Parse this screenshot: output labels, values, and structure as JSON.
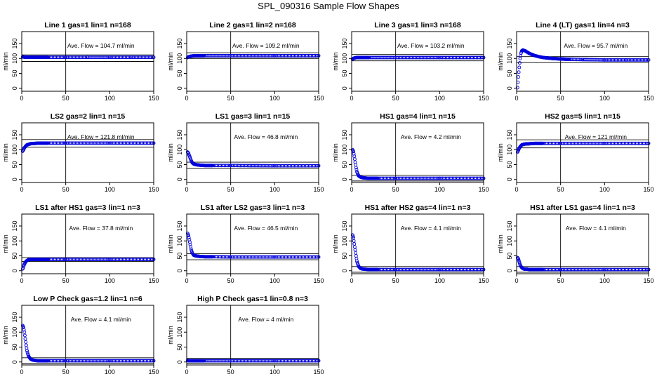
{
  "figure": {
    "title": "SPL_090316  Sample Flow Shapes"
  },
  "chart_data": [
    {
      "type": "scatter",
      "title": "Line 1 gas=1 lin=1 n=168",
      "ylabel": "ml/min",
      "annotation": "Ave. Flow =  104.7  ml/min",
      "xlim": [
        0,
        150
      ],
      "ylim": [
        -10,
        190
      ],
      "xticks": [
        0,
        50,
        100,
        150
      ],
      "yticks": [
        0,
        50,
        100,
        150
      ],
      "vline": 50,
      "hlines": [
        90,
        112
      ],
      "series": [
        {
          "x": [
            1,
            2,
            3,
            5,
            8,
            12,
            20,
            30,
            50,
            75,
            100,
            125,
            150
          ],
          "y": [
            105,
            105,
            104,
            104,
            104,
            104,
            104,
            104,
            104,
            104,
            104,
            104,
            104
          ]
        }
      ]
    },
    {
      "type": "scatter",
      "title": "Line 2 gas=1 lin=2 n=168",
      "ylabel": "ml/min",
      "annotation": "Ave. Flow =  109.2  ml/min",
      "xlim": [
        0,
        150
      ],
      "ylim": [
        -10,
        190
      ],
      "xticks": [
        0,
        50,
        100,
        150
      ],
      "yticks": [
        0,
        50,
        100,
        150
      ],
      "vline": 50,
      "hlines": [
        100,
        119
      ],
      "series": [
        {
          "x": [
            1,
            2,
            3,
            4,
            6,
            10,
            20,
            50,
            100,
            150
          ],
          "y": [
            103,
            105,
            106,
            107,
            108,
            109,
            109,
            109,
            109,
            109
          ]
        }
      ]
    },
    {
      "type": "scatter",
      "title": "Line 3 gas=1 lin=3 n=168",
      "ylabel": "ml/min",
      "annotation": "Ave. Flow =  103.2  ml/min",
      "xlim": [
        0,
        150
      ],
      "ylim": [
        -10,
        190
      ],
      "xticks": [
        0,
        50,
        100,
        150
      ],
      "yticks": [
        0,
        50,
        100,
        150
      ],
      "vline": 50,
      "hlines": [
        92,
        113
      ],
      "series": [
        {
          "x": [
            1,
            2,
            3,
            4,
            6,
            10,
            20,
            50,
            100,
            150
          ],
          "y": [
            98,
            100,
            101,
            102,
            103,
            103,
            103,
            103,
            103,
            103
          ]
        }
      ]
    },
    {
      "type": "scatter",
      "title": "Line 4 (LT) gas=1 lin=4 n=3",
      "ylabel": "ml/min",
      "annotation": "Ave. Flow =  95.7  ml/min",
      "xlim": [
        0,
        150
      ],
      "ylim": [
        -10,
        190
      ],
      "xticks": [
        0,
        50,
        100,
        150
      ],
      "yticks": [
        0,
        50,
        100,
        150
      ],
      "vline": 50,
      "hlines": [
        86,
        106
      ],
      "series": [
        {
          "x": [
            1,
            2,
            3,
            4,
            5,
            6,
            7,
            8,
            10,
            12,
            15,
            20,
            25,
            30,
            40,
            50,
            60,
            75,
            100,
            125,
            150
          ],
          "y": [
            2,
            38,
            70,
            100,
            118,
            126,
            128,
            127,
            125,
            121,
            116,
            110,
            106,
            103,
            100,
            98,
            97,
            96,
            95,
            95,
            95
          ]
        }
      ]
    },
    {
      "type": "scatter",
      "title": "LS2 gas=2 lin=1 n=15",
      "ylabel": "ml/min",
      "annotation": "Ave. Flow =  121.8  ml/min",
      "xlim": [
        0,
        150
      ],
      "ylim": [
        -10,
        190
      ],
      "xticks": [
        0,
        50,
        100,
        150
      ],
      "yticks": [
        0,
        50,
        100,
        150
      ],
      "vline": 50,
      "hlines": [
        108,
        134
      ],
      "series": [
        {
          "x": [
            1,
            2,
            3,
            4,
            5,
            6,
            8,
            10,
            15,
            20,
            30,
            50,
            100,
            150
          ],
          "y": [
            95,
            100,
            106,
            110,
            114,
            116,
            118,
            120,
            121,
            122,
            122,
            122,
            122,
            122
          ]
        }
      ]
    },
    {
      "type": "scatter",
      "title": "LS1 gas=3 lin=1 n=15",
      "ylabel": "ml/min",
      "annotation": "Ave. Flow =  46.8  ml/min",
      "xlim": [
        0,
        150
      ],
      "ylim": [
        -10,
        190
      ],
      "xticks": [
        0,
        50,
        100,
        150
      ],
      "yticks": [
        0,
        50,
        100,
        150
      ],
      "vline": 50,
      "hlines": [
        37,
        58
      ],
      "series": [
        {
          "x": [
            1,
            2,
            3,
            4,
            5,
            6,
            7,
            8,
            10,
            12,
            15,
            20,
            30,
            50,
            100,
            150
          ],
          "y": [
            92,
            88,
            80,
            72,
            64,
            58,
            54,
            52,
            50,
            49,
            48,
            47,
            47,
            47,
            46,
            46
          ]
        }
      ]
    },
    {
      "type": "scatter",
      "title": "HS1 gas=4 lin=1 n=15",
      "ylabel": "ml/min",
      "annotation": "Ave. Flow =  4.2  ml/min",
      "xlim": [
        0,
        150
      ],
      "ylim": [
        -10,
        190
      ],
      "xticks": [
        0,
        50,
        100,
        150
      ],
      "yticks": [
        0,
        50,
        100,
        150
      ],
      "vline": 50,
      "hlines": [
        -5,
        14
      ],
      "series": [
        {
          "x": [
            1,
            2,
            3,
            4,
            5,
            6,
            7,
            8,
            10,
            12,
            15,
            20,
            30,
            50,
            100,
            150
          ],
          "y": [
            100,
            94,
            78,
            58,
            40,
            26,
            18,
            12,
            8,
            6,
            5,
            4,
            4,
            4,
            4,
            4
          ]
        }
      ]
    },
    {
      "type": "scatter",
      "title": "HS2 gas=5 lin=1 n=15",
      "ylabel": "ml/min",
      "annotation": "Ave. Flow =  121  ml/min",
      "xlim": [
        0,
        150
      ],
      "ylim": [
        -10,
        190
      ],
      "xticks": [
        0,
        50,
        100,
        150
      ],
      "yticks": [
        0,
        50,
        100,
        150
      ],
      "vline": 50,
      "hlines": [
        106,
        133
      ],
      "series": [
        {
          "x": [
            1,
            2,
            3,
            4,
            5,
            6,
            8,
            10,
            15,
            20,
            30,
            50,
            100,
            150
          ],
          "y": [
            92,
            98,
            105,
            110,
            113,
            116,
            118,
            119,
            120,
            121,
            121,
            121,
            121,
            121
          ]
        }
      ]
    },
    {
      "type": "scatter",
      "title": "LS1 after HS1 gas=3 lin=1 n=3",
      "ylabel": "ml/min",
      "annotation": "Ave. Flow =  37.8  ml/min",
      "xlim": [
        0,
        150
      ],
      "ylim": [
        -10,
        190
      ],
      "xticks": [
        0,
        50,
        100,
        150
      ],
      "yticks": [
        0,
        50,
        100,
        150
      ],
      "vline": 50,
      "hlines": [
        31,
        44
      ],
      "series": [
        {
          "x": [
            1,
            2,
            3,
            4,
            5,
            6,
            7,
            8,
            10,
            12,
            15,
            20,
            30,
            50,
            100,
            150
          ],
          "y": [
            6,
            14,
            22,
            28,
            32,
            34,
            36,
            37,
            38,
            38,
            38,
            38,
            38,
            38,
            38,
            38
          ]
        }
      ]
    },
    {
      "type": "scatter",
      "title": "LS1 after LS2 gas=3 lin=1 n=3",
      "ylabel": "ml/min",
      "annotation": "Ave. Flow =  46.5  ml/min",
      "xlim": [
        0,
        150
      ],
      "ylim": [
        -10,
        190
      ],
      "xticks": [
        0,
        50,
        100,
        150
      ],
      "yticks": [
        0,
        50,
        100,
        150
      ],
      "vline": 50,
      "hlines": [
        37,
        57
      ],
      "series": [
        {
          "x": [
            1,
            2,
            3,
            4,
            5,
            6,
            7,
            8,
            10,
            12,
            15,
            20,
            30,
            50,
            100,
            150
          ],
          "y": [
            125,
            118,
            104,
            88,
            72,
            62,
            56,
            52,
            50,
            49,
            48,
            47,
            47,
            46,
            46,
            46
          ]
        }
      ]
    },
    {
      "type": "scatter",
      "title": "HS1 after HS2 gas=4 lin=1 n=3",
      "ylabel": "ml/min",
      "annotation": "Ave. Flow =  4.1  ml/min",
      "xlim": [
        0,
        150
      ],
      "ylim": [
        -10,
        190
      ],
      "xticks": [
        0,
        50,
        100,
        150
      ],
      "yticks": [
        0,
        50,
        100,
        150
      ],
      "vline": 50,
      "hlines": [
        -5,
        14
      ],
      "series": [
        {
          "x": [
            1,
            2,
            3,
            4,
            5,
            6,
            7,
            8,
            10,
            12,
            15,
            20,
            30,
            50,
            100,
            150
          ],
          "y": [
            120,
            110,
            90,
            70,
            50,
            32,
            22,
            14,
            8,
            6,
            5,
            4,
            4,
            4,
            4,
            4
          ]
        }
      ]
    },
    {
      "type": "scatter",
      "title": "HS1 after LS1 gas=4 lin=1 n=3",
      "ylabel": "ml/min",
      "annotation": "Ave. Flow =  4.1  ml/min",
      "xlim": [
        0,
        150
      ],
      "ylim": [
        -10,
        190
      ],
      "xticks": [
        0,
        50,
        100,
        150
      ],
      "yticks": [
        0,
        50,
        100,
        150
      ],
      "vline": 50,
      "hlines": [
        -5,
        14
      ],
      "series": [
        {
          "x": [
            1,
            2,
            3,
            4,
            5,
            6,
            7,
            8,
            10,
            12,
            15,
            20,
            30,
            50,
            100,
            150
          ],
          "y": [
            44,
            40,
            30,
            20,
            14,
            10,
            8,
            6,
            5,
            5,
            4,
            4,
            4,
            4,
            4,
            4
          ]
        }
      ]
    },
    {
      "type": "scatter",
      "title": "Low P Check gas=1.2 lin=1 n=6",
      "ylabel": "ml/min",
      "annotation": "Ave. Flow =  4.1  ml/min",
      "xlim": [
        0,
        150
      ],
      "ylim": [
        -10,
        190
      ],
      "xticks": [
        0,
        50,
        100,
        150
      ],
      "yticks": [
        0,
        50,
        100,
        150
      ],
      "vline": 50,
      "hlines": [
        -5,
        14
      ],
      "series": [
        {
          "x": [
            1,
            2,
            3,
            4,
            5,
            6,
            7,
            8,
            10,
            12,
            15,
            20,
            30,
            50,
            100,
            150
          ],
          "y": [
            122,
            116,
            100,
            78,
            56,
            38,
            26,
            18,
            10,
            7,
            5,
            4,
            4,
            4,
            4,
            4
          ]
        }
      ]
    },
    {
      "type": "scatter",
      "title": "High P Check gas=1 lin=0.8 n=3",
      "ylabel": "ml/min",
      "annotation": "Ave. Flow =  4  ml/min",
      "xlim": [
        0,
        150
      ],
      "ylim": [
        -10,
        190
      ],
      "xticks": [
        0,
        50,
        100,
        150
      ],
      "yticks": [
        0,
        50,
        100,
        150
      ],
      "vline": 50,
      "hlines": [
        -4,
        12
      ],
      "series": [
        {
          "x": [
            1,
            2,
            3,
            5,
            10,
            20,
            50,
            100,
            150
          ],
          "y": [
            5,
            4,
            4,
            4,
            4,
            4,
            4,
            4,
            4
          ]
        }
      ]
    }
  ]
}
